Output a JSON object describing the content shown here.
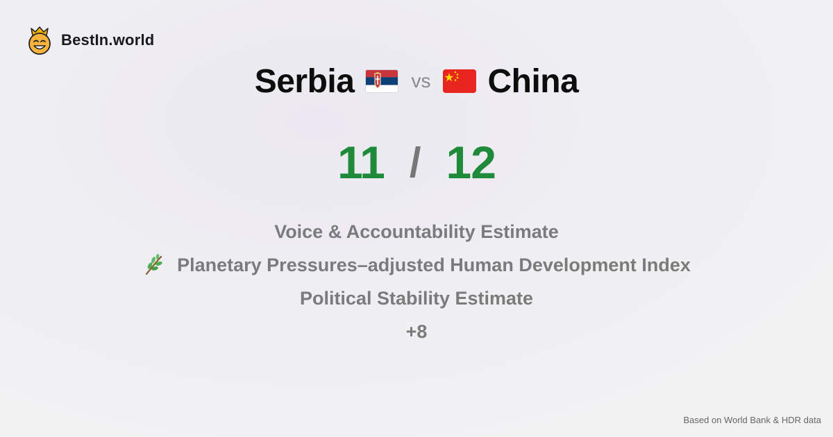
{
  "brand": {
    "name": "BestIn.world",
    "logo_icon": "crown-smiley-icon"
  },
  "comparison": {
    "left_country": "Serbia",
    "left_flag_icon": "serbia-flag-icon",
    "vs_label": "vs",
    "right_country": "China",
    "right_flag_icon": "china-flag-icon"
  },
  "score": {
    "left": "11",
    "separator": "/",
    "right": "12"
  },
  "metrics": [
    {
      "label": "Voice & Accountability Estimate"
    },
    {
      "label": "Planetary Pressures–adjusted Human Development Index",
      "icon": "leaf-branch-icon"
    },
    {
      "label": "Political Stability Estimate"
    },
    {
      "label": "+8"
    }
  ],
  "footer": {
    "source": "Based on World Bank & HDR data"
  },
  "colors": {
    "score_green": "#1e8a3a",
    "metric_gray": "#7b7b7b",
    "background": "#efeef2"
  }
}
